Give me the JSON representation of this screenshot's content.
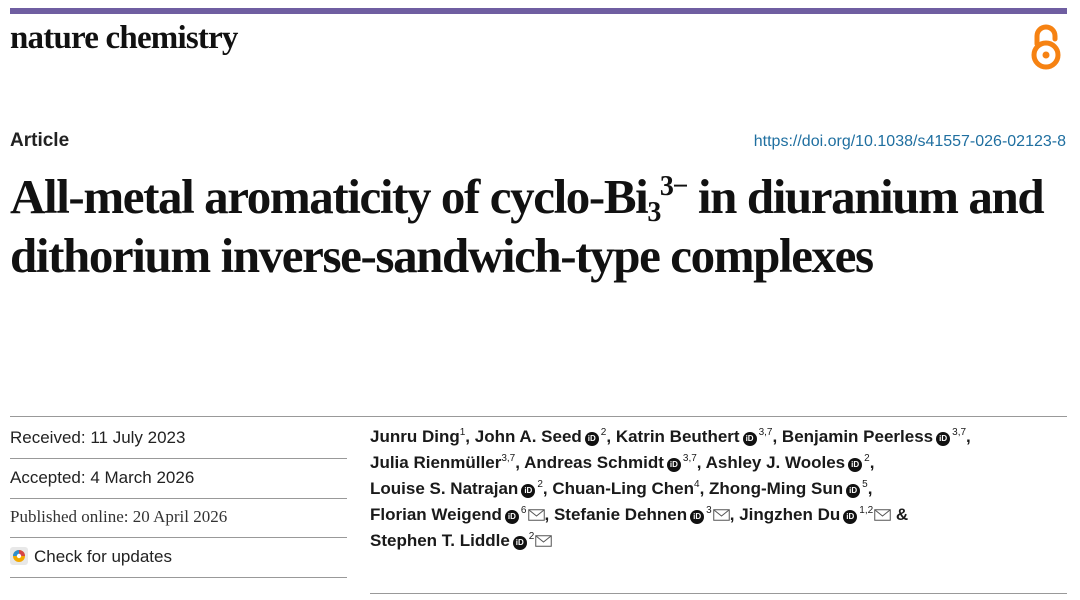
{
  "journal": {
    "name": "nature chemistry",
    "open_access_icon": "open-access-icon",
    "accent_color": "#6f5ea1"
  },
  "article": {
    "type": "Article",
    "doi": "https://doi.org/10.1038/s41557-026-02123-8"
  },
  "title": {
    "part1": "All-metal aromaticity of cyclo-Bi",
    "sub": "3",
    "sup": "3−",
    "part2": " in diuranium and dithorium inverse-sandwich-type complexes"
  },
  "dates": {
    "received": "Received: 11 July 2023",
    "accepted": "Accepted: 4 March 2026",
    "published": "Published online: 20 April 2026",
    "check_updates": "Check for updates"
  },
  "authors": [
    {
      "name": "Junru Ding",
      "aff": "1",
      "orcid": false,
      "email": false,
      "sep": ", "
    },
    {
      "name": "John A. Seed",
      "aff": "2",
      "orcid": true,
      "email": false,
      "sep": ", "
    },
    {
      "name": "Katrin Beuthert",
      "aff": "3,7",
      "orcid": true,
      "email": false,
      "sep": ", "
    },
    {
      "name": "Benjamin Peerless",
      "aff": "3,7",
      "orcid": true,
      "email": false,
      "sep": ", "
    },
    {
      "name": "Julia Rienmüller",
      "aff": "3,7",
      "orcid": false,
      "email": false,
      "sep": ", "
    },
    {
      "name": "Andreas Schmidt",
      "aff": "3,7",
      "orcid": true,
      "email": false,
      "sep": ", "
    },
    {
      "name": "Ashley J. Wooles",
      "aff": "2",
      "orcid": true,
      "email": false,
      "sep": ", "
    },
    {
      "name": "Louise S. Natrajan",
      "aff": "2",
      "orcid": true,
      "email": false,
      "sep": ", "
    },
    {
      "name": "Chuan-Ling Chen",
      "aff": "4",
      "orcid": false,
      "email": false,
      "sep": ", "
    },
    {
      "name": "Zhong-Ming Sun",
      "aff": "5",
      "orcid": true,
      "email": false,
      "sep": ", "
    },
    {
      "name": "Florian Weigend",
      "aff": "6",
      "orcid": true,
      "email": true,
      "sep": ", "
    },
    {
      "name": "Stefanie Dehnen",
      "aff": "3",
      "orcid": true,
      "email": true,
      "sep": ", "
    },
    {
      "name": "Jingzhen Du",
      "aff": "1,2",
      "orcid": true,
      "email": true,
      "sep": " & "
    },
    {
      "name": "Stephen T. Liddle",
      "aff": "2",
      "orcid": true,
      "email": true,
      "sep": ""
    }
  ],
  "icons": {
    "orcid": "orcid-icon",
    "email": "email-icon",
    "check_updates": "check-for-updates-icon"
  }
}
